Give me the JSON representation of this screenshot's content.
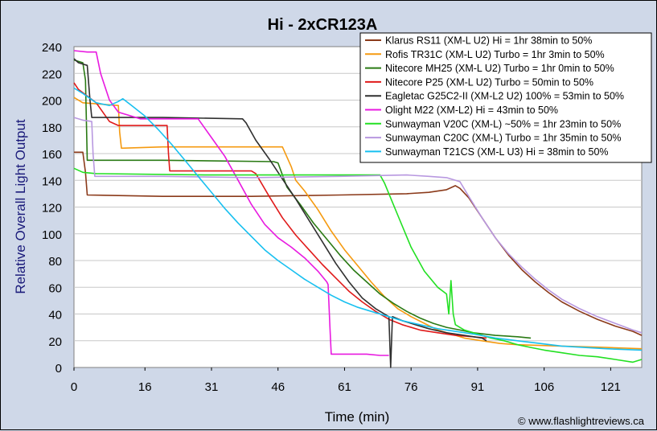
{
  "chart_data": {
    "type": "line",
    "title": "Hi - 2xCR123A",
    "xlabel": "Time (min)",
    "ylabel": "Relative Overall Light Output",
    "credit": "© www.flashlightreviews.ca",
    "xlim": [
      0,
      128
    ],
    "ylim": [
      0,
      240
    ],
    "x_ticks": [
      0,
      16,
      31,
      46,
      61,
      76,
      91,
      106,
      121
    ],
    "y_ticks": [
      0,
      20,
      40,
      60,
      80,
      100,
      120,
      140,
      160,
      180,
      200,
      220,
      240
    ],
    "grid": "horizontal",
    "legend_position": "top-right",
    "series": [
      {
        "name": "Klarus RS11 (XM-L U2) Hi = 1hr 38min to 50%",
        "color": "#8b3a1a",
        "points": [
          [
            0,
            161
          ],
          [
            2,
            161
          ],
          [
            2.6,
            146
          ],
          [
            3,
            129
          ],
          [
            20,
            128
          ],
          [
            40,
            128
          ],
          [
            60,
            129
          ],
          [
            75,
            130
          ],
          [
            80,
            131
          ],
          [
            84,
            133
          ],
          [
            86,
            136
          ],
          [
            87,
            134
          ],
          [
            89,
            127
          ],
          [
            92,
            112
          ],
          [
            95,
            97
          ],
          [
            98,
            84
          ],
          [
            101,
            73
          ],
          [
            104,
            64
          ],
          [
            107,
            56
          ],
          [
            110,
            49
          ],
          [
            114,
            42
          ],
          [
            118,
            36
          ],
          [
            122,
            31
          ],
          [
            126,
            27
          ],
          [
            128,
            24
          ]
        ]
      },
      {
        "name": "Rofis TR31C (XM-L U2) Turbo = 1hr 3min to 50%",
        "color": "#f59a10",
        "points": [
          [
            0,
            202
          ],
          [
            2,
            198
          ],
          [
            10,
            196
          ],
          [
            10.3,
            176
          ],
          [
            10.7,
            164
          ],
          [
            20,
            165
          ],
          [
            45,
            165
          ],
          [
            47,
            165
          ],
          [
            49,
            150
          ],
          [
            50,
            140
          ],
          [
            52,
            132
          ],
          [
            55,
            118
          ],
          [
            58,
            102
          ],
          [
            61,
            88
          ],
          [
            64,
            76
          ],
          [
            67,
            64
          ],
          [
            70,
            53
          ],
          [
            73,
            44
          ],
          [
            76,
            38
          ],
          [
            79,
            33
          ],
          [
            82,
            28
          ],
          [
            85,
            25
          ],
          [
            88,
            22
          ],
          [
            92,
            20
          ],
          [
            96,
            18
          ],
          [
            100,
            17
          ],
          [
            110,
            16
          ],
          [
            120,
            15
          ],
          [
            128,
            14
          ]
        ]
      },
      {
        "name": "Nitecore MH25 (XM-L U2) Turbo = 1hr 0min to 50%",
        "color": "#2a7a14",
        "points": [
          [
            0,
            230
          ],
          [
            2,
            228
          ],
          [
            2.6,
            215
          ],
          [
            3,
            155
          ],
          [
            20,
            155
          ],
          [
            45,
            154
          ],
          [
            46,
            153
          ],
          [
            48,
            135
          ],
          [
            51,
            122
          ],
          [
            54,
            108
          ],
          [
            57,
            96
          ],
          [
            60,
            84
          ],
          [
            63,
            73
          ],
          [
            66,
            64
          ],
          [
            69,
            55
          ],
          [
            72,
            48
          ],
          [
            75,
            42
          ],
          [
            78,
            37
          ],
          [
            81,
            33
          ],
          [
            84,
            30
          ],
          [
            87,
            28
          ],
          [
            90,
            26
          ],
          [
            95,
            24
          ],
          [
            100,
            23
          ],
          [
            103,
            22
          ]
        ]
      },
      {
        "name": "Nitecore P25 (XM-L U2) Turbo = 50min to 50%",
        "color": "#e01a1a",
        "points": [
          [
            0,
            213
          ],
          [
            1,
            208
          ],
          [
            5,
            198
          ],
          [
            8,
            184
          ],
          [
            10,
            181
          ],
          [
            20,
            181
          ],
          [
            21,
            181
          ],
          [
            21.3,
            160
          ],
          [
            21.6,
            147
          ],
          [
            40,
            147
          ],
          [
            41,
            145
          ],
          [
            44,
            128
          ],
          [
            47,
            112
          ],
          [
            50,
            99
          ],
          [
            53,
            88
          ],
          [
            56,
            77
          ],
          [
            59,
            67
          ],
          [
            62,
            57
          ],
          [
            65,
            49
          ],
          [
            68,
            42
          ],
          [
            71,
            36
          ],
          [
            74,
            32
          ],
          [
            78,
            28
          ],
          [
            82,
            26
          ],
          [
            86,
            24
          ],
          [
            90,
            23
          ],
          [
            93,
            22
          ]
        ]
      },
      {
        "name": "Eagletac G25C2-II (XM-L2 U2) 100% = 53min to 50%",
        "color": "#303030",
        "points": [
          [
            0,
            231
          ],
          [
            1,
            228
          ],
          [
            3,
            226
          ],
          [
            3.6,
            200
          ],
          [
            4,
            187
          ],
          [
            20,
            187
          ],
          [
            38,
            186
          ],
          [
            38.8,
            183
          ],
          [
            41,
            170
          ],
          [
            44,
            156
          ],
          [
            47,
            141
          ],
          [
            50,
            126
          ],
          [
            53,
            110
          ],
          [
            56,
            94
          ],
          [
            59,
            78
          ],
          [
            62,
            64
          ],
          [
            65,
            52
          ],
          [
            68,
            44
          ],
          [
            70,
            40
          ],
          [
            71,
            38
          ],
          [
            71.4,
            0
          ],
          [
            71.8,
            38
          ],
          [
            74,
            35
          ],
          [
            77,
            32
          ],
          [
            80,
            29
          ],
          [
            84,
            26
          ],
          [
            88,
            24
          ],
          [
            92,
            22
          ],
          [
            93,
            20
          ]
        ]
      },
      {
        "name": "Olight M22 (XM-L2) Hi = 43min to 50%",
        "color": "#e81ae0",
        "points": [
          [
            0,
            237
          ],
          [
            3,
            236
          ],
          [
            5,
            236
          ],
          [
            6,
            220
          ],
          [
            8,
            200
          ],
          [
            10,
            191
          ],
          [
            15,
            186
          ],
          [
            25,
            186
          ],
          [
            28,
            186
          ],
          [
            31,
            172
          ],
          [
            34,
            158
          ],
          [
            37,
            140
          ],
          [
            40,
            122
          ],
          [
            43,
            107
          ],
          [
            46,
            97
          ],
          [
            49,
            90
          ],
          [
            52,
            82
          ],
          [
            55,
            72
          ],
          [
            57,
            64
          ],
          [
            57.3,
            62
          ],
          [
            57.7,
            30
          ],
          [
            58,
            10
          ],
          [
            62,
            10
          ],
          [
            66,
            10
          ],
          [
            69,
            9
          ],
          [
            71,
            9
          ]
        ]
      },
      {
        "name": "Sunwayman V20C (XM-L) ~50% = 1hr 23min to 50%",
        "color": "#22e022",
        "points": [
          [
            0,
            149
          ],
          [
            2,
            146
          ],
          [
            5,
            145
          ],
          [
            30,
            144
          ],
          [
            60,
            144
          ],
          [
            69,
            144
          ],
          [
            70,
            138
          ],
          [
            73,
            114
          ],
          [
            76,
            90
          ],
          [
            79,
            72
          ],
          [
            82,
            60
          ],
          [
            84,
            55
          ],
          [
            84.5,
            40
          ],
          [
            85,
            65
          ],
          [
            85.5,
            40
          ],
          [
            86,
            32
          ],
          [
            88,
            28
          ],
          [
            91,
            25
          ],
          [
            94,
            22
          ],
          [
            97,
            20
          ],
          [
            100,
            17
          ],
          [
            103,
            15
          ],
          [
            106,
            13
          ],
          [
            110,
            11
          ],
          [
            114,
            9
          ],
          [
            118,
            8
          ],
          [
            122,
            6
          ],
          [
            126,
            4
          ],
          [
            128,
            6
          ]
        ]
      },
      {
        "name": "Sunwayman C20C (XM-L) Turbo = 1hr 35min to 50%",
        "color": "#b898e0",
        "points": [
          [
            0,
            187
          ],
          [
            2,
            185
          ],
          [
            4,
            184
          ],
          [
            4.3,
            160
          ],
          [
            4.7,
            143
          ],
          [
            20,
            143
          ],
          [
            40,
            142
          ],
          [
            60,
            143
          ],
          [
            75,
            144
          ],
          [
            80,
            143
          ],
          [
            84,
            142
          ],
          [
            87,
            139
          ],
          [
            89,
            128
          ],
          [
            92,
            112
          ],
          [
            95,
            97
          ],
          [
            98,
            85
          ],
          [
            101,
            75
          ],
          [
            104,
            66
          ],
          [
            107,
            58
          ],
          [
            110,
            51
          ],
          [
            114,
            44
          ],
          [
            118,
            38
          ],
          [
            122,
            33
          ],
          [
            126,
            28
          ],
          [
            128,
            26
          ]
        ]
      },
      {
        "name": "Sunwayman T21CS (XM-L U3) Hi = 38min to 50%",
        "color": "#18c0f0",
        "points": [
          [
            0,
            209
          ],
          [
            2,
            205
          ],
          [
            5,
            198
          ],
          [
            8,
            196
          ],
          [
            10,
            199
          ],
          [
            11,
            201
          ],
          [
            13,
            196
          ],
          [
            16,
            188
          ],
          [
            19,
            178
          ],
          [
            22,
            167
          ],
          [
            25,
            155
          ],
          [
            28,
            143
          ],
          [
            31,
            131
          ],
          [
            34,
            119
          ],
          [
            37,
            108
          ],
          [
            40,
            98
          ],
          [
            43,
            88
          ],
          [
            46,
            80
          ],
          [
            49,
            73
          ],
          [
            52,
            66
          ],
          [
            55,
            60
          ],
          [
            58,
            54
          ],
          [
            61,
            49
          ],
          [
            64,
            45
          ],
          [
            67,
            42
          ],
          [
            70,
            39
          ],
          [
            74,
            35
          ],
          [
            78,
            32
          ],
          [
            82,
            29
          ],
          [
            86,
            27
          ],
          [
            90,
            25
          ],
          [
            95,
            22
          ],
          [
            100,
            20
          ],
          [
            105,
            18
          ],
          [
            110,
            16
          ],
          [
            115,
            15
          ],
          [
            120,
            14
          ],
          [
            128,
            13
          ]
        ]
      }
    ]
  }
}
